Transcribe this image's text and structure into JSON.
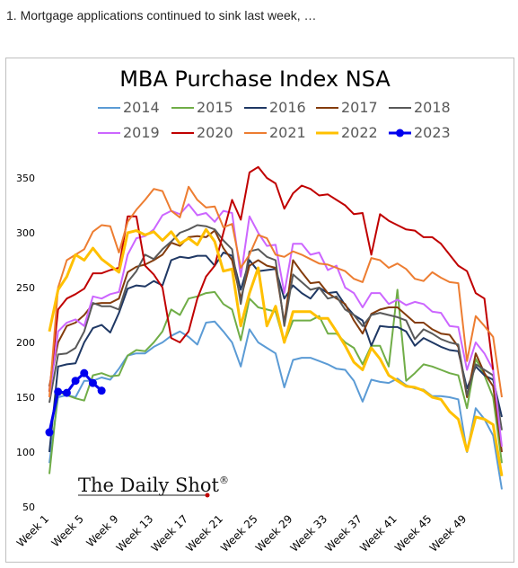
{
  "page": {
    "caption": "1. Mortgage applications continued to sink last week, …"
  },
  "brand": {
    "watermark": "The Daily Shot",
    "mark": "®"
  },
  "chart_data": {
    "type": "line",
    "title": "MBA Purchase Index NSA",
    "xlabel": "",
    "ylabel": "",
    "ylim": [
      50,
      350
    ],
    "yticks": [
      50,
      100,
      150,
      200,
      250,
      300,
      350
    ],
    "xlim": [
      1,
      53
    ],
    "xticks": [
      {
        "week": 1,
        "label": "Week 1"
      },
      {
        "week": 5,
        "label": "Week 5"
      },
      {
        "week": 9,
        "label": "Week 9"
      },
      {
        "week": 13,
        "label": "Week 13"
      },
      {
        "week": 17,
        "label": "Week 17"
      },
      {
        "week": 21,
        "label": "Week 21"
      },
      {
        "week": 25,
        "label": "Week 25"
      },
      {
        "week": 29,
        "label": "Week 29"
      },
      {
        "week": 33,
        "label": "Week 33"
      },
      {
        "week": 37,
        "label": "Week 37"
      },
      {
        "week": 41,
        "label": "Week 41"
      },
      {
        "week": 45,
        "label": "Week 45"
      },
      {
        "week": 49,
        "label": "Week 49"
      }
    ],
    "grid": false,
    "legend_position": "top",
    "series": [
      {
        "name": "2014",
        "color": "#5b9bd5",
        "width": 2,
        "values": [
          90,
          150,
          152,
          150,
          165,
          165,
          168,
          166,
          176,
          188,
          190,
          190,
          196,
          200,
          206,
          210,
          205,
          198,
          218,
          219,
          210,
          200,
          178,
          212,
          200,
          195,
          190,
          159,
          184,
          186,
          186,
          183,
          180,
          176,
          175,
          165,
          146,
          166,
          164,
          163,
          167,
          161,
          158,
          157,
          151,
          151,
          150,
          148,
          100,
          140,
          130,
          115,
          66
        ]
      },
      {
        "name": "2015",
        "color": "#70ad47",
        "width": 2,
        "values": [
          80,
          155,
          152,
          149,
          147,
          170,
          172,
          169,
          170,
          188,
          193,
          192,
          200,
          210,
          230,
          225,
          240,
          242,
          245,
          246,
          235,
          230,
          202,
          240,
          232,
          230,
          228,
          200,
          220,
          220,
          220,
          224,
          208,
          208,
          200,
          195,
          180,
          197,
          197,
          178,
          248,
          165,
          172,
          180,
          178,
          175,
          172,
          170,
          140,
          185,
          170,
          150,
          90
        ]
      },
      {
        "name": "2016",
        "color": "#1f3864",
        "width": 2,
        "values": [
          100,
          178,
          180,
          181,
          200,
          213,
          216,
          209,
          227,
          249,
          252,
          251,
          256,
          252,
          275,
          278,
          277,
          279,
          279,
          270,
          282,
          279,
          248,
          275,
          265,
          266,
          267,
          240,
          252,
          245,
          240,
          250,
          245,
          246,
          234,
          225,
          220,
          197,
          215,
          214,
          214,
          210,
          197,
          204,
          200,
          196,
          193,
          192,
          158,
          178,
          170,
          166,
          132
        ]
      },
      {
        "name": "2017",
        "color": "#843c0c",
        "width": 2,
        "values": [
          160,
          200,
          215,
          218,
          225,
          235,
          236,
          236,
          240,
          264,
          269,
          271,
          275,
          280,
          291,
          288,
          296,
          297,
          296,
          302,
          286,
          275,
          240,
          270,
          275,
          270,
          268,
          218,
          275,
          264,
          254,
          255,
          245,
          240,
          235,
          220,
          208,
          226,
          230,
          232,
          232,
          225,
          218,
          218,
          212,
          208,
          207,
          196,
          150,
          190,
          172,
          160,
          100
        ]
      },
      {
        "name": "2018",
        "color": "#595959",
        "width": 2,
        "values": [
          145,
          189,
          190,
          195,
          210,
          236,
          233,
          233,
          230,
          255,
          265,
          280,
          276,
          285,
          292,
          300,
          303,
          307,
          306,
          303,
          293,
          285,
          235,
          283,
          285,
          278,
          275,
          215,
          262,
          255,
          248,
          250,
          240,
          242,
          230,
          225,
          215,
          225,
          227,
          225,
          223,
          220,
          203,
          212,
          208,
          203,
          200,
          198,
          152,
          180,
          175,
          170,
          120
        ]
      },
      {
        "name": "2019",
        "color": "#cc66ff",
        "width": 2,
        "values": [
          150,
          210,
          218,
          221,
          215,
          242,
          240,
          244,
          246,
          280,
          295,
          297,
          303,
          316,
          320,
          317,
          326,
          316,
          318,
          310,
          320,
          318,
          260,
          315,
          300,
          288,
          289,
          245,
          290,
          290,
          280,
          282,
          266,
          270,
          250,
          245,
          232,
          245,
          245,
          235,
          239,
          234,
          237,
          235,
          228,
          227,
          215,
          214,
          175,
          200,
          190,
          175,
          105
        ]
      },
      {
        "name": "2020",
        "color": "#c00000",
        "width": 2,
        "values": [
          155,
          230,
          240,
          244,
          249,
          263,
          263,
          266,
          268,
          315,
          315,
          270,
          262,
          250,
          204,
          200,
          210,
          240,
          260,
          270,
          300,
          330,
          312,
          355,
          360,
          350,
          345,
          322,
          336,
          343,
          340,
          334,
          335,
          330,
          325,
          317,
          318,
          280,
          317,
          311,
          307,
          303,
          302,
          296,
          296,
          290,
          280,
          270,
          265,
          245,
          240,
          175
        ]
      },
      {
        "name": "2021",
        "color": "#ed7d31",
        "width": 2,
        "values": [
          150,
          250,
          275,
          280,
          285,
          301,
          307,
          306,
          282,
          310,
          321,
          330,
          340,
          338,
          320,
          314,
          342,
          330,
          323,
          324,
          305,
          308,
          268,
          280,
          298,
          295,
          280,
          278,
          283,
          280,
          276,
          272,
          271,
          268,
          265,
          258,
          255,
          277,
          275,
          268,
          272,
          267,
          258,
          256,
          264,
          259,
          255,
          254,
          183,
          224,
          215,
          205,
          150
        ]
      },
      {
        "name": "2022",
        "color": "#ffc000",
        "width": 3,
        "values": [
          210,
          248,
          260,
          280,
          275,
          286,
          276,
          270,
          264,
          300,
          302,
          298,
          301,
          293,
          301,
          290,
          295,
          289,
          303,
          292,
          265,
          267,
          215,
          245,
          268,
          215,
          233,
          200,
          228,
          228,
          228,
          222,
          222,
          210,
          197,
          182,
          175,
          195,
          185,
          170,
          165,
          160,
          159,
          156,
          150,
          148,
          137,
          130,
          101,
          132,
          130,
          125,
          78
        ]
      },
      {
        "name": "2023",
        "color": "#0000ee",
        "width": 3,
        "marker": true,
        "values": [
          118,
          155,
          154,
          165,
          172,
          163,
          156
        ]
      }
    ]
  }
}
